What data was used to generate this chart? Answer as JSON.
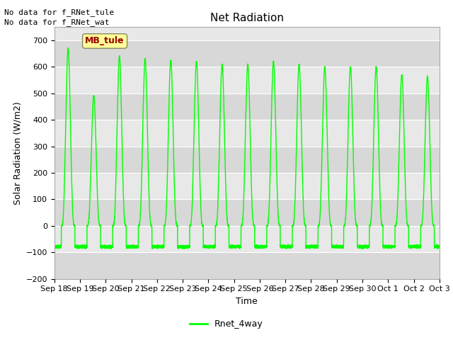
{
  "title": "Net Radiation",
  "ylabel": "Solar Radiation (W/m2)",
  "xlabel": "Time",
  "ylim": [
    -200,
    750
  ],
  "yticks": [
    -200,
    -100,
    0,
    100,
    200,
    300,
    400,
    500,
    600,
    700
  ],
  "line_color": "#00FF00",
  "line_width": 1.0,
  "bg_color": "#E8E8E8",
  "grid_color": "#FFFFFF",
  "no_data_text1": "No data for f_RNet_tule",
  "no_data_text2": "No data for f_RNet_wat",
  "annotation_text": "MB_tule",
  "annotation_color": "#990000",
  "annotation_bg": "#FFFF99",
  "legend_label": "Rnet_4way",
  "start_day": 18,
  "num_days": 15,
  "night_value": -75,
  "title_fontsize": 11,
  "label_fontsize": 9,
  "tick_fontsize": 8
}
